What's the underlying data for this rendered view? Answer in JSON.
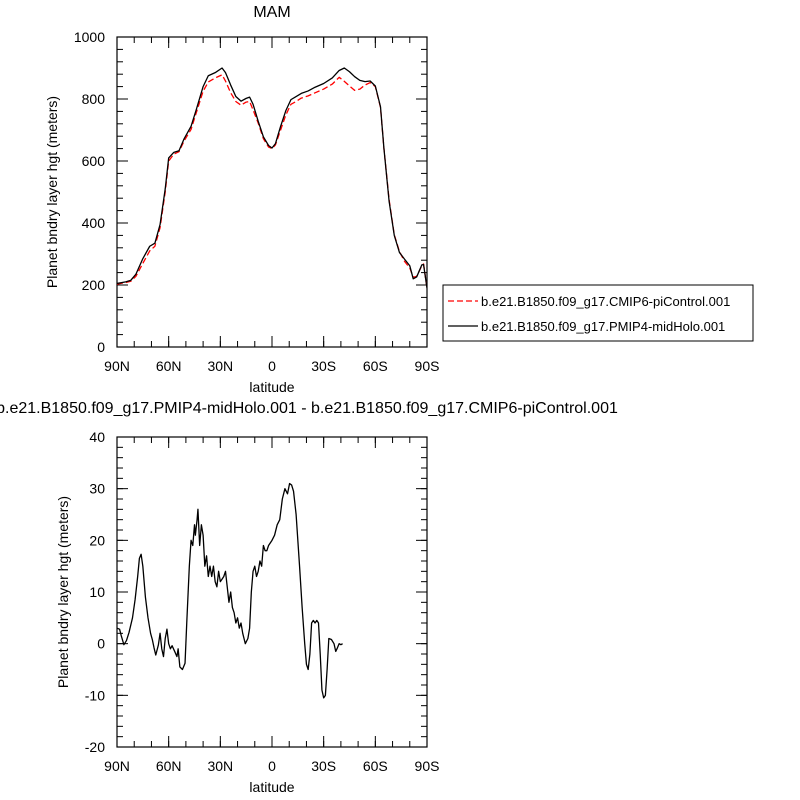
{
  "chart_data": [
    {
      "type": "line",
      "title": "MAM",
      "xlabel": "latitude",
      "ylabel": "Planet bndry layer hgt (meters)",
      "xlim": [
        90,
        -90
      ],
      "ylim": [
        0,
        1000
      ],
      "x_ticks": [
        90,
        60,
        30,
        0,
        -30,
        -60,
        -90
      ],
      "x_tick_labels": [
        "90N",
        "60N",
        "30N",
        "0",
        "30S",
        "60S",
        "90S"
      ],
      "y_ticks": [
        0,
        200,
        400,
        600,
        800,
        1000
      ],
      "y_tick_labels": [
        "0",
        "200",
        "400",
        "600",
        "800",
        "1000"
      ],
      "legend_position": "right",
      "series": [
        {
          "name": "b.e21.B1850.f09_g17.CMIP6-piControl.001",
          "color": "#ff0000",
          "dash": "dashed",
          "points": [
            [
              90,
              203
            ],
            [
              85,
              208
            ],
            [
              82,
              212
            ],
            [
              79,
              228
            ],
            [
              75,
              270
            ],
            [
              71,
              310
            ],
            [
              68,
              325
            ],
            [
              65,
              385
            ],
            [
              62,
              500
            ],
            [
              60,
              600
            ],
            [
              57,
              622
            ],
            [
              54,
              630
            ],
            [
              51,
              665
            ],
            [
              47,
              702
            ],
            [
              44,
              755
            ],
            [
              40,
              825
            ],
            [
              37,
              855
            ],
            [
              33,
              868
            ],
            [
              29,
              878
            ],
            [
              27,
              858
            ],
            [
              24,
              820
            ],
            [
              21,
              792
            ],
            [
              18,
              780
            ],
            [
              15,
              790
            ],
            [
              13,
              792
            ],
            [
              11,
              765
            ],
            [
              8,
              722
            ],
            [
              5,
              672
            ],
            [
              2,
              645
            ],
            [
              0,
              640
            ],
            [
              -2,
              652
            ],
            [
              -5,
              700
            ],
            [
              -8,
              748
            ],
            [
              -11,
              783
            ],
            [
              -14,
              792
            ],
            [
              -17,
              803
            ],
            [
              -21,
              810
            ],
            [
              -25,
              820
            ],
            [
              -30,
              832
            ],
            [
              -35,
              848
            ],
            [
              -39,
              870
            ],
            [
              -42,
              857
            ],
            [
              -45,
              842
            ],
            [
              -48,
              828
            ],
            [
              -51,
              832
            ],
            [
              -54,
              845
            ],
            [
              -57,
              853
            ],
            [
              -60,
              840
            ],
            [
              -63,
              773
            ],
            [
              -65,
              640
            ],
            [
              -68,
              475
            ],
            [
              -71,
              362
            ],
            [
              -74,
              308
            ],
            [
              -77,
              276
            ],
            [
              -80,
              255
            ],
            [
              -82,
              225
            ],
            [
              -84,
              228
            ],
            [
              -87,
              262
            ],
            [
              -88,
              268
            ],
            [
              -90,
              190
            ]
          ]
        },
        {
          "name": "b.e21.B1850.f09_g17.PMIP4-midHolo.001",
          "color": "#000000",
          "dash": "solid",
          "points": [
            [
              90,
              205
            ],
            [
              85,
              210
            ],
            [
              82,
              215
            ],
            [
              79,
              235
            ],
            [
              75,
              285
            ],
            [
              71,
              325
            ],
            [
              68,
              335
            ],
            [
              65,
              395
            ],
            [
              62,
              510
            ],
            [
              60,
              610
            ],
            [
              57,
              628
            ],
            [
              54,
              633
            ],
            [
              51,
              672
            ],
            [
              47,
              712
            ],
            [
              44,
              765
            ],
            [
              40,
              840
            ],
            [
              37,
              875
            ],
            [
              33,
              885
            ],
            [
              29,
              900
            ],
            [
              27,
              885
            ],
            [
              24,
              845
            ],
            [
              21,
              808
            ],
            [
              18,
              793
            ],
            [
              15,
              802
            ],
            [
              13,
              806
            ],
            [
              11,
              783
            ],
            [
              8,
              728
            ],
            [
              5,
              678
            ],
            [
              2,
              650
            ],
            [
              0,
              642
            ],
            [
              -2,
              656
            ],
            [
              -5,
              712
            ],
            [
              -8,
              762
            ],
            [
              -11,
              798
            ],
            [
              -14,
              808
            ],
            [
              -17,
              818
            ],
            [
              -21,
              826
            ],
            [
              -25,
              838
            ],
            [
              -30,
              850
            ],
            [
              -35,
              868
            ],
            [
              -39,
              892
            ],
            [
              -42,
              900
            ],
            [
              -45,
              888
            ],
            [
              -48,
              872
            ],
            [
              -51,
              860
            ],
            [
              -54,
              856
            ],
            [
              -57,
              858
            ],
            [
              -60,
              842
            ],
            [
              -63,
              775
            ],
            [
              -65,
              640
            ],
            [
              -68,
              470
            ],
            [
              -71,
              360
            ],
            [
              -74,
              305
            ],
            [
              -77,
              283
            ],
            [
              -80,
              262
            ],
            [
              -82,
              220
            ],
            [
              -84,
              226
            ],
            [
              -87,
              265
            ],
            [
              -88,
              266
            ],
            [
              -90,
              190
            ]
          ]
        }
      ]
    },
    {
      "type": "line",
      "title": "b.e21.B1850.f09_g17.PMIP4-midHolo.001 - b.e21.B1850.f09_g17.CMIP6-piControl.001",
      "xlabel": "latitude",
      "ylabel": "Planet bndry layer hgt (meters)",
      "xlim": [
        90,
        -90
      ],
      "ylim": [
        -20,
        40
      ],
      "x_ticks": [
        90,
        60,
        30,
        0,
        -30,
        -60,
        -90
      ],
      "x_tick_labels": [
        "90N",
        "60N",
        "30N",
        "0",
        "30S",
        "60S",
        "90S"
      ],
      "y_ticks": [
        -20,
        -10,
        0,
        10,
        20,
        30,
        40
      ],
      "y_tick_labels": [
        "-20",
        "-10",
        "0",
        "10",
        "20",
        "30",
        "40"
      ],
      "series": [
        {
          "color": "#000000",
          "dash": "solid",
          "points": [
            [
              90,
              3
            ],
            [
              88.5,
              2.8
            ],
            [
              87.5,
              1.5
            ],
            [
              86,
              -0.2
            ],
            [
              84.5,
              0.6
            ],
            [
              83,
              2.2
            ],
            [
              81,
              5
            ],
            [
              79.5,
              8.5
            ],
            [
              78,
              13
            ],
            [
              77,
              16.5
            ],
            [
              76,
              17.3
            ],
            [
              75,
              15
            ],
            [
              73.5,
              9
            ],
            [
              72,
              5
            ],
            [
              70.5,
              2
            ],
            [
              69.5,
              0.8
            ],
            [
              68.5,
              -0.8
            ],
            [
              67.5,
              -2.2
            ],
            [
              66,
              -0.3
            ],
            [
              65,
              2
            ],
            [
              64,
              -1
            ],
            [
              63,
              -2.5
            ],
            [
              62,
              1
            ],
            [
              61,
              2.8
            ],
            [
              60,
              0
            ],
            [
              59,
              -1
            ],
            [
              58,
              -0.4
            ],
            [
              56.5,
              -1.5
            ],
            [
              55.2,
              -2.5
            ],
            [
              54.5,
              -1
            ],
            [
              53.5,
              -4.5
            ],
            [
              52,
              -5
            ],
            [
              50.5,
              -3.8
            ],
            [
              49.5,
              4
            ],
            [
              48,
              15
            ],
            [
              47,
              20
            ],
            [
              46,
              19
            ],
            [
              45,
              23
            ],
            [
              44.5,
              21
            ],
            [
              43.5,
              24
            ],
            [
              43,
              26
            ],
            [
              42,
              19
            ],
            [
              41,
              23
            ],
            [
              40,
              21
            ],
            [
              39,
              15
            ],
            [
              38,
              17
            ],
            [
              37,
              13
            ],
            [
              36,
              15
            ],
            [
              35,
              13
            ],
            [
              34,
              15
            ],
            [
              33,
              12
            ],
            [
              32,
              11
            ],
            [
              31,
              14
            ],
            [
              30,
              12
            ],
            [
              29,
              12.5
            ],
            [
              28,
              13
            ],
            [
              27,
              14
            ],
            [
              26,
              11
            ],
            [
              25,
              8
            ],
            [
              24,
              10
            ],
            [
              23,
              7
            ],
            [
              22,
              6
            ],
            [
              21,
              4
            ],
            [
              20,
              5
            ],
            [
              19,
              3
            ],
            [
              18,
              4
            ],
            [
              17,
              2
            ],
            [
              15.5,
              0
            ],
            [
              14,
              1
            ],
            [
              13,
              3
            ],
            [
              12,
              10
            ],
            [
              11,
              14
            ],
            [
              10,
              15
            ],
            [
              9,
              13
            ],
            [
              8,
              14
            ],
            [
              7,
              16
            ],
            [
              6,
              15
            ],
            [
              5,
              19
            ],
            [
              4,
              18
            ],
            [
              3,
              18
            ],
            [
              2,
              19
            ],
            [
              0,
              20
            ],
            [
              -1.5,
              21
            ],
            [
              -3,
              23
            ],
            [
              -4.5,
              24
            ],
            [
              -6,
              28
            ],
            [
              -7.5,
              30
            ],
            [
              -9,
              29
            ],
            [
              -10.2,
              31
            ],
            [
              -11.4,
              30.7
            ],
            [
              -12.5,
              29.5
            ],
            [
              -14,
              25
            ],
            [
              -16,
              15
            ],
            [
              -17.5,
              7
            ],
            [
              -19,
              0
            ],
            [
              -20,
              -4
            ],
            [
              -21,
              -5
            ],
            [
              -22,
              -2
            ],
            [
              -23,
              4
            ],
            [
              -24,
              4.5
            ],
            [
              -25,
              4
            ],
            [
              -26,
              4.5
            ],
            [
              -27,
              4
            ],
            [
              -28,
              -2
            ],
            [
              -29,
              -9
            ],
            [
              -30,
              -10.5
            ],
            [
              -31,
              -10
            ],
            [
              -32,
              -5
            ],
            [
              -33,
              1
            ],
            [
              -34.5,
              0.8
            ],
            [
              -36,
              0
            ],
            [
              -37,
              -1.5
            ],
            [
              -38,
              -0.8
            ],
            [
              -39,
              0
            ],
            [
              -40,
              -0.2
            ],
            [
              -41,
              0
            ]
          ]
        }
      ]
    }
  ]
}
